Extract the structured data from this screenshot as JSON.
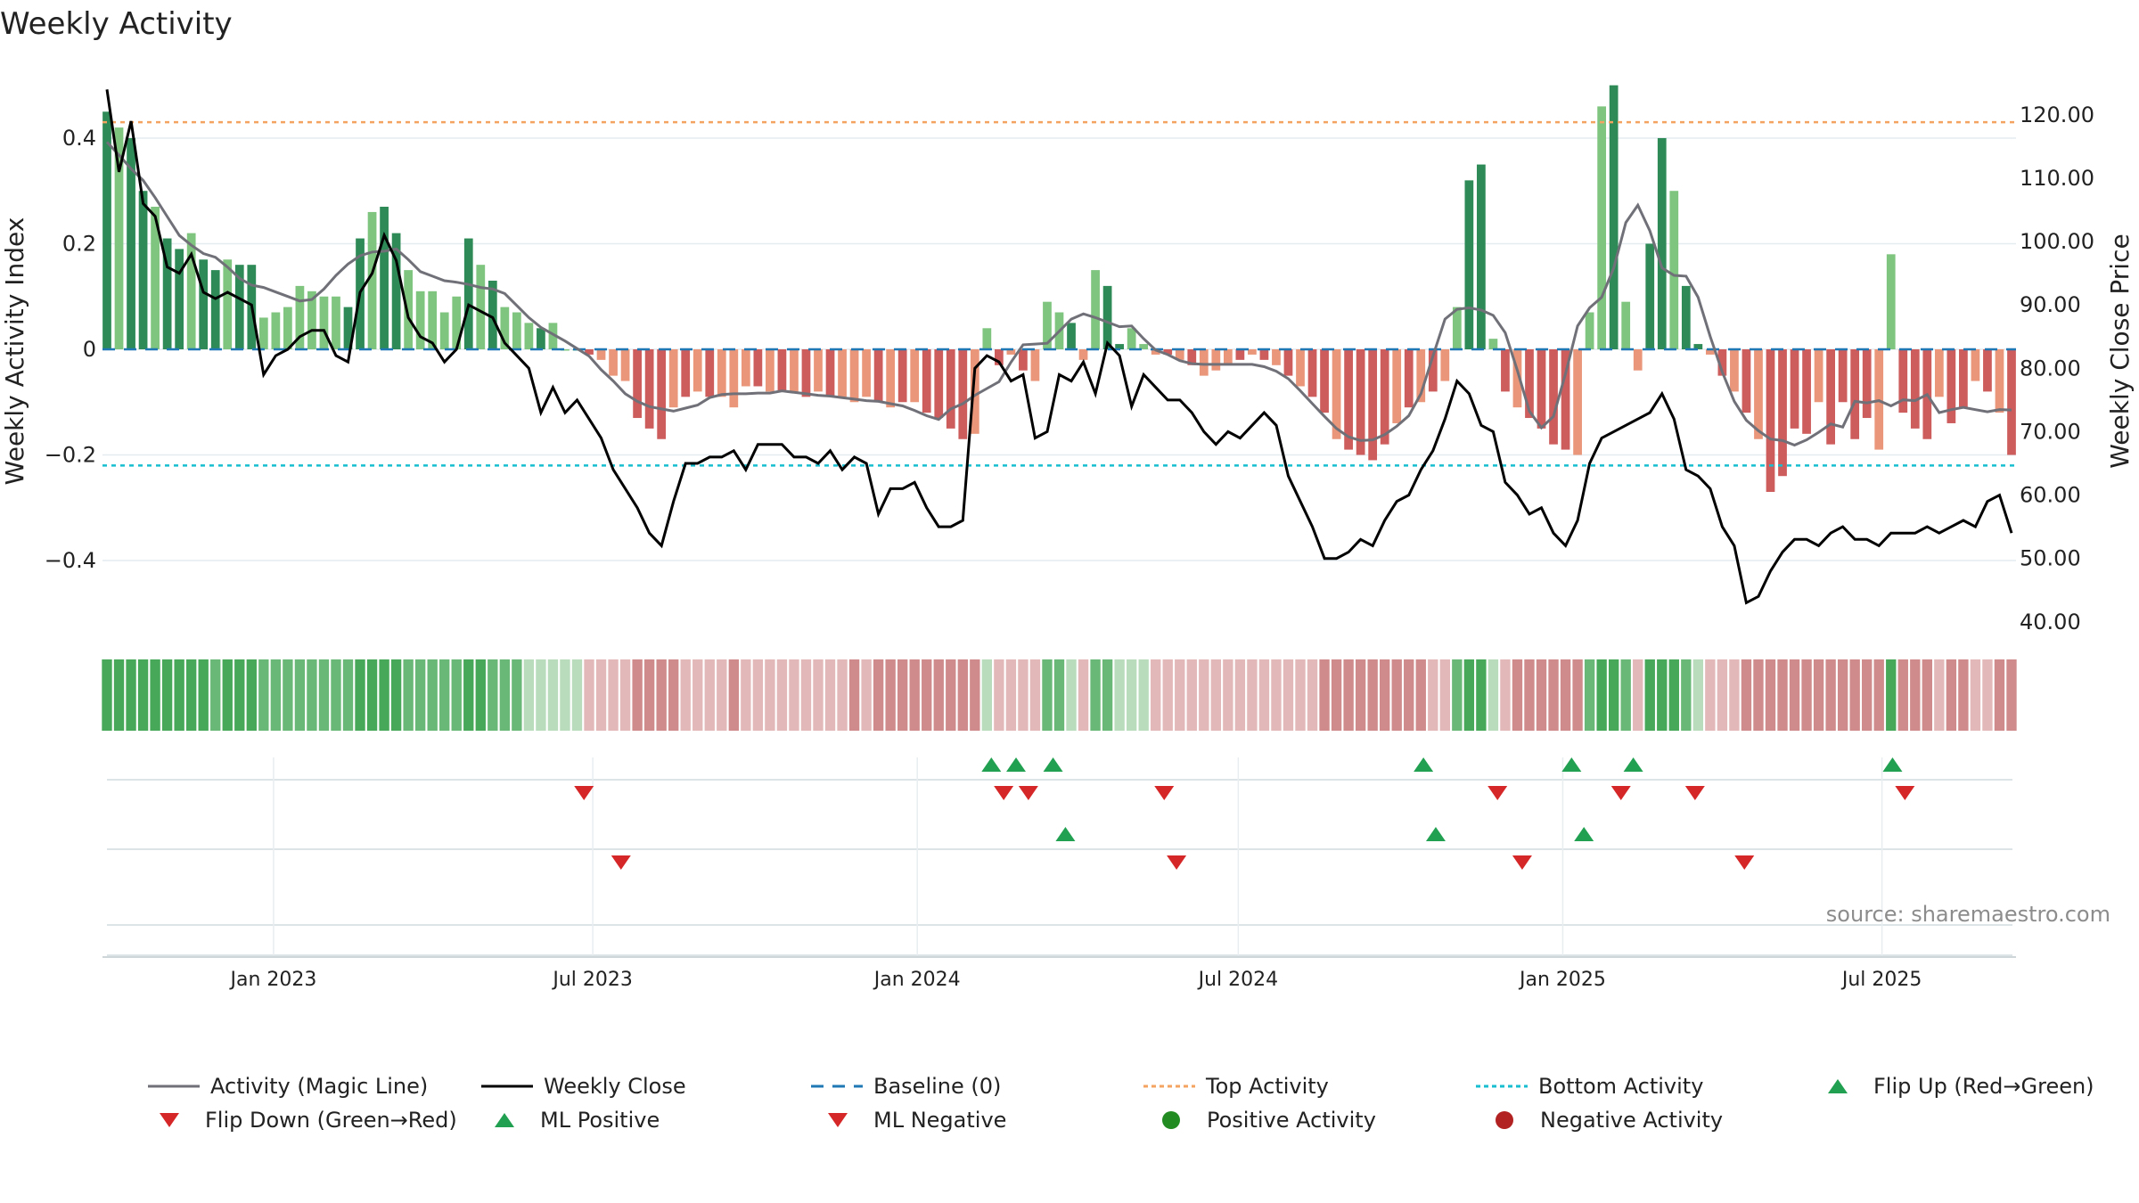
{
  "chart_data": {
    "type": "bar",
    "title": "Weekly Activity",
    "ylabel_left": "Weekly Activity Index",
    "ylabel_right": "Weekly Close Price",
    "ylim_left": [
      -0.54,
      0.54
    ],
    "ylim_right": [
      38,
      128
    ],
    "yticks_left": [
      0.4,
      0.2,
      0,
      -0.2,
      -0.4
    ],
    "yticks_left_labels": [
      "0.4",
      "0.2",
      "0",
      "−0.2",
      "−0.4"
    ],
    "yticks_right": [
      120,
      110,
      100,
      90,
      80,
      70,
      60,
      50,
      40
    ],
    "yticks_right_labels": [
      "120.00",
      "110.00",
      "100.00",
      "90.00",
      "80.00",
      "70.00",
      "60.00",
      "50.00",
      "40.00"
    ],
    "x_start": "2022-09-26",
    "x_end": "2025-09-15",
    "xticks": [
      {
        "date": "2023-01-01",
        "label": "Jan 2023"
      },
      {
        "date": "2023-07-01",
        "label": "Jul 2023"
      },
      {
        "date": "2024-01-01",
        "label": "Jan 2024"
      },
      {
        "date": "2024-07-01",
        "label": "Jul 2024"
      },
      {
        "date": "2025-01-01",
        "label": "Jan 2025"
      },
      {
        "date": "2025-07-01",
        "label": "Jul 2025"
      }
    ],
    "top_activity": 0.43,
    "bottom_activity": -0.22,
    "baseline": 0,
    "activity_anchors": [
      [
        0,
        0.45
      ],
      [
        1,
        0.42
      ],
      [
        2,
        0.4
      ],
      [
        3,
        0.3
      ],
      [
        4,
        0.27
      ],
      [
        5,
        0.21
      ],
      [
        6,
        0.19
      ],
      [
        7,
        0.22
      ],
      [
        8,
        0.17
      ],
      [
        9,
        0.15
      ],
      [
        10,
        0.17
      ],
      [
        11,
        0.16
      ],
      [
        12,
        0.16
      ],
      [
        13,
        0.06
      ],
      [
        14,
        0.07
      ],
      [
        15,
        0.08
      ],
      [
        16,
        0.12
      ],
      [
        17,
        0.11
      ],
      [
        18,
        0.1
      ],
      [
        19,
        0.1
      ],
      [
        20,
        0.08
      ],
      [
        21,
        0.21
      ],
      [
        22,
        0.26
      ],
      [
        23,
        0.27
      ],
      [
        24,
        0.22
      ],
      [
        25,
        0.15
      ],
      [
        26,
        0.11
      ],
      [
        27,
        0.11
      ],
      [
        28,
        0.07
      ],
      [
        29,
        0.1
      ],
      [
        30,
        0.21
      ],
      [
        31,
        0.16
      ],
      [
        32,
        0.13
      ],
      [
        33,
        0.08
      ],
      [
        34,
        0.07
      ],
      [
        35,
        0.05
      ],
      [
        36,
        0.04
      ],
      [
        37,
        0.05
      ],
      [
        38,
        0.0
      ],
      [
        39,
        0.0
      ],
      [
        40,
        -0.01
      ],
      [
        41,
        -0.02
      ],
      [
        42,
        -0.05
      ],
      [
        43,
        -0.06
      ],
      [
        44,
        -0.13
      ],
      [
        45,
        -0.15
      ],
      [
        46,
        -0.17
      ],
      [
        47,
        -0.11
      ],
      [
        48,
        -0.09
      ],
      [
        49,
        -0.08
      ],
      [
        50,
        -0.09
      ],
      [
        51,
        -0.09
      ],
      [
        52,
        -0.11
      ],
      [
        53,
        -0.07
      ],
      [
        54,
        -0.07
      ],
      [
        55,
        -0.08
      ],
      [
        56,
        -0.08
      ],
      [
        57,
        -0.08
      ],
      [
        58,
        -0.09
      ],
      [
        59,
        -0.08
      ],
      [
        60,
        -0.09
      ],
      [
        61,
        -0.09
      ],
      [
        62,
        -0.1
      ],
      [
        63,
        -0.09
      ],
      [
        64,
        -0.1
      ],
      [
        65,
        -0.11
      ],
      [
        66,
        -0.1
      ],
      [
        67,
        -0.1
      ],
      [
        68,
        -0.12
      ],
      [
        69,
        -0.13
      ],
      [
        70,
        -0.15
      ],
      [
        71,
        -0.17
      ],
      [
        72,
        -0.16
      ],
      [
        73,
        0.04
      ],
      [
        74,
        -0.03
      ],
      [
        75,
        -0.01
      ],
      [
        76,
        -0.04
      ],
      [
        77,
        -0.06
      ],
      [
        78,
        0.09
      ],
      [
        79,
        0.07
      ],
      [
        80,
        0.05
      ],
      [
        81,
        -0.02
      ],
      [
        82,
        0.15
      ],
      [
        83,
        0.12
      ],
      [
        84,
        0.01
      ],
      [
        85,
        0.04
      ],
      [
        86,
        0.01
      ],
      [
        87,
        -0.01
      ],
      [
        88,
        -0.01
      ],
      [
        89,
        -0.02
      ],
      [
        90,
        -0.03
      ],
      [
        91,
        -0.05
      ],
      [
        92,
        -0.04
      ],
      [
        93,
        -0.03
      ],
      [
        94,
        -0.02
      ],
      [
        95,
        -0.01
      ],
      [
        96,
        -0.02
      ],
      [
        97,
        -0.03
      ],
      [
        98,
        -0.05
      ],
      [
        99,
        -0.07
      ],
      [
        100,
        -0.09
      ],
      [
        101,
        -0.12
      ],
      [
        102,
        -0.17
      ],
      [
        103,
        -0.19
      ],
      [
        104,
        -0.2
      ],
      [
        105,
        -0.21
      ],
      [
        106,
        -0.18
      ],
      [
        107,
        -0.14
      ],
      [
        108,
        -0.11
      ],
      [
        109,
        -0.1
      ],
      [
        110,
        -0.08
      ],
      [
        111,
        -0.06
      ],
      [
        112,
        0.08
      ],
      [
        113,
        0.32
      ],
      [
        114,
        0.35
      ],
      [
        115,
        0.02
      ],
      [
        116,
        -0.08
      ],
      [
        117,
        -0.11
      ],
      [
        118,
        -0.13
      ],
      [
        119,
        -0.15
      ],
      [
        120,
        -0.18
      ],
      [
        121,
        -0.19
      ],
      [
        122,
        -0.2
      ],
      [
        123,
        0.07
      ],
      [
        124,
        0.46
      ],
      [
        125,
        0.5
      ],
      [
        126,
        0.09
      ],
      [
        127,
        -0.04
      ],
      [
        128,
        0.2
      ],
      [
        129,
        0.4
      ],
      [
        130,
        0.3
      ],
      [
        131,
        0.12
      ],
      [
        132,
        0.01
      ],
      [
        133,
        -0.01
      ],
      [
        134,
        -0.05
      ],
      [
        135,
        -0.08
      ],
      [
        136,
        -0.12
      ],
      [
        137,
        -0.17
      ],
      [
        138,
        -0.27
      ],
      [
        139,
        -0.24
      ],
      [
        140,
        -0.15
      ],
      [
        141,
        -0.16
      ],
      [
        142,
        -0.1
      ],
      [
        143,
        -0.18
      ],
      [
        144,
        -0.1
      ],
      [
        145,
        -0.17
      ],
      [
        146,
        -0.13
      ],
      [
        147,
        -0.19
      ],
      [
        148,
        0.18
      ],
      [
        149,
        -0.12
      ],
      [
        150,
        -0.15
      ],
      [
        151,
        -0.17
      ],
      [
        152,
        -0.09
      ],
      [
        153,
        -0.14
      ],
      [
        154,
        -0.11
      ],
      [
        155,
        -0.06
      ],
      [
        156,
        -0.08
      ],
      [
        157,
        -0.12
      ],
      [
        158,
        -0.2
      ]
    ],
    "close_anchors": [
      [
        0,
        124
      ],
      [
        1,
        111
      ],
      [
        2,
        119
      ],
      [
        3,
        106
      ],
      [
        4,
        104
      ],
      [
        5,
        96
      ],
      [
        6,
        95
      ],
      [
        7,
        98
      ],
      [
        8,
        92
      ],
      [
        9,
        91
      ],
      [
        10,
        92
      ],
      [
        11,
        91
      ],
      [
        12,
        90
      ],
      [
        13,
        79
      ],
      [
        14,
        82
      ],
      [
        15,
        83
      ],
      [
        16,
        85
      ],
      [
        17,
        86
      ],
      [
        18,
        86
      ],
      [
        19,
        82
      ],
      [
        20,
        81
      ],
      [
        21,
        92
      ],
      [
        22,
        95
      ],
      [
        23,
        101
      ],
      [
        24,
        97
      ],
      [
        25,
        88
      ],
      [
        26,
        85
      ],
      [
        27,
        84
      ],
      [
        28,
        81
      ],
      [
        29,
        83
      ],
      [
        30,
        90
      ],
      [
        31,
        89
      ],
      [
        32,
        88
      ],
      [
        33,
        84
      ],
      [
        34,
        82
      ],
      [
        35,
        80
      ],
      [
        36,
        73
      ],
      [
        37,
        77
      ],
      [
        38,
        73
      ],
      [
        39,
        75
      ],
      [
        40,
        72
      ],
      [
        41,
        69
      ],
      [
        42,
        64
      ],
      [
        43,
        61
      ],
      [
        44,
        58
      ],
      [
        45,
        54
      ],
      [
        46,
        52
      ],
      [
        47,
        59
      ],
      [
        48,
        65
      ],
      [
        49,
        65
      ],
      [
        50,
        66
      ],
      [
        51,
        66
      ],
      [
        52,
        67
      ],
      [
        53,
        64
      ],
      [
        54,
        68
      ],
      [
        55,
        68
      ],
      [
        56,
        68
      ],
      [
        57,
        66
      ],
      [
        58,
        66
      ],
      [
        59,
        65
      ],
      [
        60,
        67
      ],
      [
        61,
        64
      ],
      [
        62,
        66
      ],
      [
        63,
        65
      ],
      [
        64,
        57
      ],
      [
        65,
        61
      ],
      [
        66,
        61
      ],
      [
        67,
        62
      ],
      [
        68,
        58
      ],
      [
        69,
        55
      ],
      [
        70,
        55
      ],
      [
        71,
        56
      ],
      [
        72,
        80
      ],
      [
        73,
        82
      ],
      [
        74,
        81
      ],
      [
        75,
        78
      ],
      [
        76,
        79
      ],
      [
        77,
        69
      ],
      [
        78,
        70
      ],
      [
        79,
        79
      ],
      [
        80,
        78
      ],
      [
        81,
        81
      ],
      [
        82,
        76
      ],
      [
        83,
        84
      ],
      [
        84,
        82
      ],
      [
        85,
        74
      ],
      [
        86,
        79
      ],
      [
        87,
        77
      ],
      [
        88,
        75
      ],
      [
        89,
        75
      ],
      [
        90,
        73
      ],
      [
        91,
        70
      ],
      [
        92,
        68
      ],
      [
        93,
        70
      ],
      [
        94,
        69
      ],
      [
        95,
        71
      ],
      [
        96,
        73
      ],
      [
        97,
        71
      ],
      [
        98,
        63
      ],
      [
        99,
        59
      ],
      [
        100,
        55
      ],
      [
        101,
        50
      ],
      [
        102,
        50
      ],
      [
        103,
        51
      ],
      [
        104,
        53
      ],
      [
        105,
        52
      ],
      [
        106,
        56
      ],
      [
        107,
        59
      ],
      [
        108,
        60
      ],
      [
        109,
        64
      ],
      [
        110,
        67
      ],
      [
        111,
        72
      ],
      [
        112,
        78
      ],
      [
        113,
        76
      ],
      [
        114,
        71
      ],
      [
        115,
        70
      ],
      [
        116,
        62
      ],
      [
        117,
        60
      ],
      [
        118,
        57
      ],
      [
        119,
        58
      ],
      [
        120,
        54
      ],
      [
        121,
        52
      ],
      [
        122,
        56
      ],
      [
        123,
        65
      ],
      [
        124,
        69
      ],
      [
        125,
        70
      ],
      [
        126,
        71
      ],
      [
        127,
        72
      ],
      [
        128,
        73
      ],
      [
        129,
        76
      ],
      [
        130,
        72
      ],
      [
        131,
        64
      ],
      [
        132,
        63
      ],
      [
        133,
        61
      ],
      [
        134,
        55
      ],
      [
        135,
        52
      ],
      [
        136,
        43
      ],
      [
        137,
        44
      ],
      [
        138,
        48
      ],
      [
        139,
        51
      ],
      [
        140,
        53
      ],
      [
        141,
        53
      ],
      [
        142,
        52
      ],
      [
        143,
        54
      ],
      [
        144,
        55
      ],
      [
        145,
        53
      ],
      [
        146,
        53
      ],
      [
        147,
        52
      ],
      [
        148,
        54
      ],
      [
        149,
        54
      ],
      [
        150,
        54
      ],
      [
        151,
        55
      ],
      [
        152,
        54
      ],
      [
        153,
        55
      ],
      [
        154,
        56
      ],
      [
        155,
        55
      ],
      [
        156,
        59
      ],
      [
        157,
        60
      ],
      [
        158,
        54
      ]
    ],
    "strip_colors": [
      "#48a85a",
      "#6ab877",
      "#b8dcbc",
      "#e3b8b8",
      "#cf8b8b"
    ],
    "markers": {
      "flip_up": [
        "2024-02-12",
        "2024-02-26",
        "2024-03-18",
        "2024-10-14",
        "2025-01-06",
        "2025-02-10",
        "2025-07-07"
      ],
      "flip_down": [
        "2023-06-26",
        "2024-02-19",
        "2024-03-04",
        "2024-05-20",
        "2024-11-25",
        "2025-02-03",
        "2025-03-17",
        "2025-07-14"
      ],
      "ml_positive": [
        "2024-03-25",
        "2024-10-21",
        "2025-01-13"
      ],
      "ml_negative": [
        "2023-07-17",
        "2024-05-27",
        "2024-12-09",
        "2025-04-14"
      ]
    },
    "legend": [
      "Activity (Magic Line)",
      "Weekly Close",
      "Baseline (0)",
      "Top Activity",
      "Bottom Activity",
      "Flip Up (Red→Green)",
      "Flip Down (Green→Red)",
      "ML Positive",
      "ML Negative",
      "Positive Activity",
      "Negative Activity"
    ],
    "source": "source: sharemaestro.com"
  },
  "colors": {
    "dark_green": "#2e8b57",
    "light_green": "#7fc47f",
    "dark_red": "#cd5c5c",
    "light_red": "#e9967a",
    "magic_line": "#707078",
    "close_line": "#000000",
    "baseline": "#1f77b4",
    "top_line": "#f4a460",
    "bottom_line": "#17becf",
    "marker_up": "#21a051",
    "marker_down": "#d62728",
    "positive_dot": "#228b22",
    "negative_dot": "#b22222"
  }
}
